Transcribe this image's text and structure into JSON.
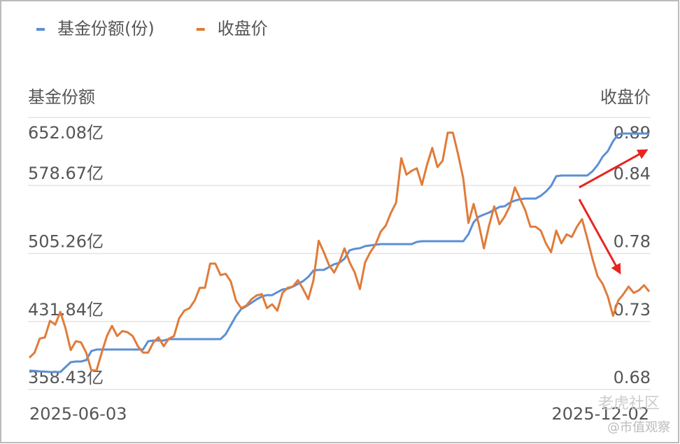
{
  "chart_data": {
    "type": "line",
    "ylabel": "基金份额",
    "y2label": "收盘价",
    "categories": [
      "2025-06-03",
      null,
      null,
      null,
      null,
      null,
      null,
      null,
      null,
      null,
      null,
      null,
      null,
      null,
      null,
      null,
      null,
      null,
      null,
      null,
      null,
      null,
      null,
      null,
      null,
      null,
      null,
      null,
      null,
      null,
      null,
      null,
      null,
      null,
      null,
      null,
      null,
      null,
      null,
      null,
      null,
      null,
      null,
      null,
      null,
      null,
      null,
      null,
      null,
      null,
      null,
      null,
      null,
      null,
      null,
      null,
      null,
      null,
      null,
      null,
      null,
      null,
      null,
      null,
      null,
      null,
      null,
      null,
      null,
      null,
      null,
      null,
      null,
      null,
      null,
      null,
      null,
      null,
      null,
      null,
      null,
      null,
      null,
      null,
      null,
      null,
      null,
      null,
      null,
      null,
      null,
      null,
      null,
      null,
      null,
      null,
      null,
      null,
      null,
      null,
      null,
      null,
      null,
      null,
      null,
      null,
      null,
      null,
      null,
      null,
      null,
      null,
      null,
      null,
      null,
      null,
      null,
      null,
      null,
      null,
      "2025-12-02"
    ],
    "series": [
      {
        "name": "基金份额(份)",
        "color": "#5b8fd6",
        "axis": "y",
        "values": [
          378.8,
          378.4,
          378.0,
          377.7,
          377.3,
          377.3,
          377.3,
          382.6,
          387.9,
          388.6,
          388.6,
          390.1,
          399.9,
          401.5,
          401.5,
          401.5,
          401.5,
          401.5,
          401.5,
          401.5,
          401.5,
          401.5,
          401.5,
          410.5,
          411.3,
          411.3,
          411.3,
          412.8,
          412.8,
          412.8,
          412.8,
          412.8,
          412.8,
          412.8,
          412.8,
          412.8,
          412.8,
          412.8,
          418.1,
          427.9,
          437.7,
          445.2,
          448.3,
          452.0,
          455.8,
          458.8,
          460.3,
          460.3,
          463.4,
          466.4,
          467.1,
          469.4,
          472.4,
          475.4,
          480.0,
          486.8,
          487.5,
          487.5,
          490.5,
          493.6,
          495.1,
          499.6,
          508.7,
          510.2,
          510.9,
          513.2,
          513.9,
          514.7,
          515.4,
          515.4,
          515.4,
          515.4,
          515.4,
          515.4,
          515.4,
          517.7,
          518.5,
          518.5,
          518.5,
          518.5,
          518.5,
          518.5,
          518.5,
          518.5,
          518.5,
          526.0,
          538.9,
          544.9,
          547.2,
          549.4,
          552.4,
          555.5,
          556.2,
          560.0,
          562.3,
          563.8,
          564.5,
          564.5,
          564.5,
          567.5,
          572.1,
          578.1,
          588.7,
          589.4,
          589.4,
          589.4,
          589.4,
          589.4,
          589.4,
          593.9,
          600.7,
          609.8,
          615.8,
          626.4,
          634.0,
          634.7,
          634.7,
          634.7,
          634.7,
          634.7,
          634.7
        ]
      },
      {
        "name": "收盘价",
        "color": "#e07b39",
        "axis": "y2",
        "values": [
          0.702,
          0.706,
          0.717,
          0.718,
          0.731,
          0.728,
          0.738,
          0.725,
          0.708,
          0.715,
          0.714,
          0.706,
          0.692,
          0.692,
          0.706,
          0.719,
          0.727,
          0.719,
          0.723,
          0.722,
          0.719,
          0.711,
          0.706,
          0.706,
          0.714,
          0.718,
          0.711,
          0.717,
          0.719,
          0.733,
          0.739,
          0.741,
          0.747,
          0.757,
          0.757,
          0.776,
          0.776,
          0.767,
          0.768,
          0.762,
          0.747,
          0.741,
          0.743,
          0.748,
          0.751,
          0.752,
          0.741,
          0.744,
          0.739,
          0.753,
          0.757,
          0.758,
          0.763,
          0.756,
          0.748,
          0.763,
          0.794,
          0.785,
          0.775,
          0.769,
          0.777,
          0.788,
          0.777,
          0.769,
          0.756,
          0.777,
          0.785,
          0.791,
          0.801,
          0.806,
          0.816,
          0.824,
          0.859,
          0.846,
          0.849,
          0.851,
          0.838,
          0.854,
          0.867,
          0.852,
          0.857,
          0.879,
          0.879,
          0.862,
          0.843,
          0.808,
          0.823,
          0.807,
          0.788,
          0.806,
          0.821,
          0.807,
          0.813,
          0.821,
          0.836,
          0.827,
          0.818,
          0.805,
          0.805,
          0.802,
          0.792,
          0.785,
          0.802,
          0.792,
          0.799,
          0.797,
          0.805,
          0.811,
          0.796,
          0.78,
          0.766,
          0.76,
          0.75,
          0.735,
          0.747,
          0.752,
          0.758,
          0.753,
          0.755,
          0.759,
          0.754
        ]
      }
    ],
    "ylim": [
      358.43,
      652.08
    ],
    "yticks": [
      {
        "value": 358.43,
        "label": "358.43亿"
      },
      {
        "value": 431.84,
        "label": "431.84亿"
      },
      {
        "value": 505.26,
        "label": "505.26亿"
      },
      {
        "value": 578.67,
        "label": "578.67亿"
      },
      {
        "value": 652.08,
        "label": "652.08亿"
      }
    ],
    "y2lim": [
      0.677,
      0.891
    ],
    "y2ticks": [
      {
        "value": 0.677,
        "label": "0.68"
      },
      {
        "value": 0.7305,
        "label": "0.73"
      },
      {
        "value": 0.784,
        "label": "0.78"
      },
      {
        "value": 0.8375,
        "label": "0.84"
      },
      {
        "value": 0.891,
        "label": "0.89"
      }
    ],
    "grid": true,
    "legend": "top-left"
  },
  "watermark": {
    "main": "老虎社区",
    "sub": "@市值观察"
  }
}
